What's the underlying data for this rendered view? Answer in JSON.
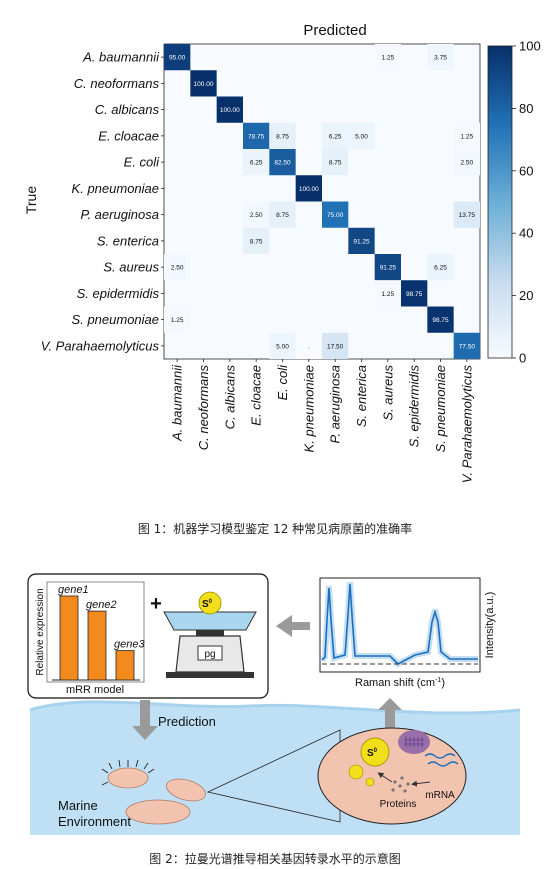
{
  "figure1": {
    "caption": "图 1：机器学习模型鉴定 12 种常见病原菌的准确率",
    "chart_data": {
      "type": "heatmap",
      "title": "Predicted",
      "xlabel": "",
      "ylabel": "True",
      "classes": [
        "A. baumannii",
        "C. neoformans",
        "C. albicans",
        "E. cloacae",
        "E. coli",
        "K. pneumoniae",
        "P. aeruginosa",
        "S. enterica",
        "S. aureus",
        "S. epidermidis",
        "S. pneumoniae",
        "V. Parahaemolyticus"
      ],
      "cells": [
        {
          "row": 0,
          "col": 0,
          "value": 95.0,
          "label": "95.00"
        },
        {
          "row": 0,
          "col": 8,
          "value": 1.25,
          "label": "1.25"
        },
        {
          "row": 0,
          "col": 10,
          "value": 3.75,
          "label": "3.75"
        },
        {
          "row": 1,
          "col": 1,
          "value": 100.0,
          "label": "100.00"
        },
        {
          "row": 2,
          "col": 2,
          "value": 100.0,
          "label": "100.00"
        },
        {
          "row": 3,
          "col": 3,
          "value": 78.75,
          "label": "78.75"
        },
        {
          "row": 3,
          "col": 4,
          "value": 8.75,
          "label": "8.75"
        },
        {
          "row": 3,
          "col": 6,
          "value": 6.25,
          "label": "6.25"
        },
        {
          "row": 3,
          "col": 7,
          "value": 5.0,
          "label": "5.00"
        },
        {
          "row": 3,
          "col": 11,
          "value": 1.25,
          "label": "1.25"
        },
        {
          "row": 4,
          "col": 3,
          "value": 6.25,
          "label": "6.25"
        },
        {
          "row": 4,
          "col": 4,
          "value": 82.5,
          "label": "82.50"
        },
        {
          "row": 4,
          "col": 6,
          "value": 8.75,
          "label": "8.75"
        },
        {
          "row": 4,
          "col": 11,
          "value": 2.5,
          "label": "2.50"
        },
        {
          "row": 5,
          "col": 5,
          "value": 100.0,
          "label": "100.00"
        },
        {
          "row": 6,
          "col": 3,
          "value": 2.5,
          "label": "2.50"
        },
        {
          "row": 6,
          "col": 4,
          "value": 8.75,
          "label": "8.75"
        },
        {
          "row": 6,
          "col": 6,
          "value": 75.0,
          "label": "75.00"
        },
        {
          "row": 6,
          "col": 11,
          "value": 13.75,
          "label": "13.75"
        },
        {
          "row": 7,
          "col": 3,
          "value": 8.75,
          "label": "8.75"
        },
        {
          "row": 7,
          "col": 7,
          "value": 91.25,
          "label": "91.25"
        },
        {
          "row": 8,
          "col": 0,
          "value": 2.5,
          "label": "2.50"
        },
        {
          "row": 8,
          "col": 8,
          "value": 91.25,
          "label": "91.25"
        },
        {
          "row": 8,
          "col": 10,
          "value": 6.25,
          "label": "6.25"
        },
        {
          "row": 9,
          "col": 8,
          "value": 1.25,
          "label": "1.25"
        },
        {
          "row": 9,
          "col": 9,
          "value": 98.75,
          "label": "98.75"
        },
        {
          "row": 10,
          "col": 0,
          "value": 1.25,
          "label": "1.25"
        },
        {
          "row": 10,
          "col": 10,
          "value": 98.75,
          "label": "98.75"
        },
        {
          "row": 11,
          "col": 4,
          "value": 5.0,
          "label": "5.00"
        },
        {
          "row": 11,
          "col": 5,
          "value": 0.0,
          "label": "."
        },
        {
          "row": 11,
          "col": 6,
          "value": 17.5,
          "label": "17.50"
        },
        {
          "row": 11,
          "col": 11,
          "value": 77.5,
          "label": "77.50"
        }
      ],
      "colorbar": {
        "ticks": [
          0,
          20,
          40,
          60,
          80,
          100
        ],
        "range": [
          0,
          100
        ],
        "color_low": "#f7fbff",
        "color_high": "#08306b"
      }
    }
  },
  "figure2": {
    "caption": "图 2：拉曼光谱推导相关基因转录水平的示意图",
    "bar_panel": {
      "ylabel": "Relative expression",
      "xlabel": "mRR model",
      "bars": [
        {
          "label": "gene1",
          "value": 1.0
        },
        {
          "label": "gene2",
          "value": 0.82
        },
        {
          "label": "gene3",
          "value": 0.35
        }
      ],
      "bar_color": "#f28a1e"
    },
    "plus_sign": "+",
    "sulfur_label": "S",
    "sulfur_superscript": "0",
    "scale_display": "pg",
    "raman_panel": {
      "xlabel": "Raman shift (cm",
      "xlabel_sup": "-1",
      "xlabel_end": ")",
      "ylabel": "Intensity(a.u.)"
    },
    "prediction_label": "Prediction",
    "environment_label": [
      "Marine",
      "Environment"
    ],
    "cell": {
      "proteins_label": "Proteins",
      "mrna_label": "mRNA"
    },
    "colors": {
      "water": "#bfe0f4",
      "cell": "#f2c4b0",
      "sulfur": "#f2de1a",
      "nucleoid": "#9a6fa8",
      "spectrum": "#1a6fc0",
      "arrow": "#9a9a9a"
    }
  }
}
